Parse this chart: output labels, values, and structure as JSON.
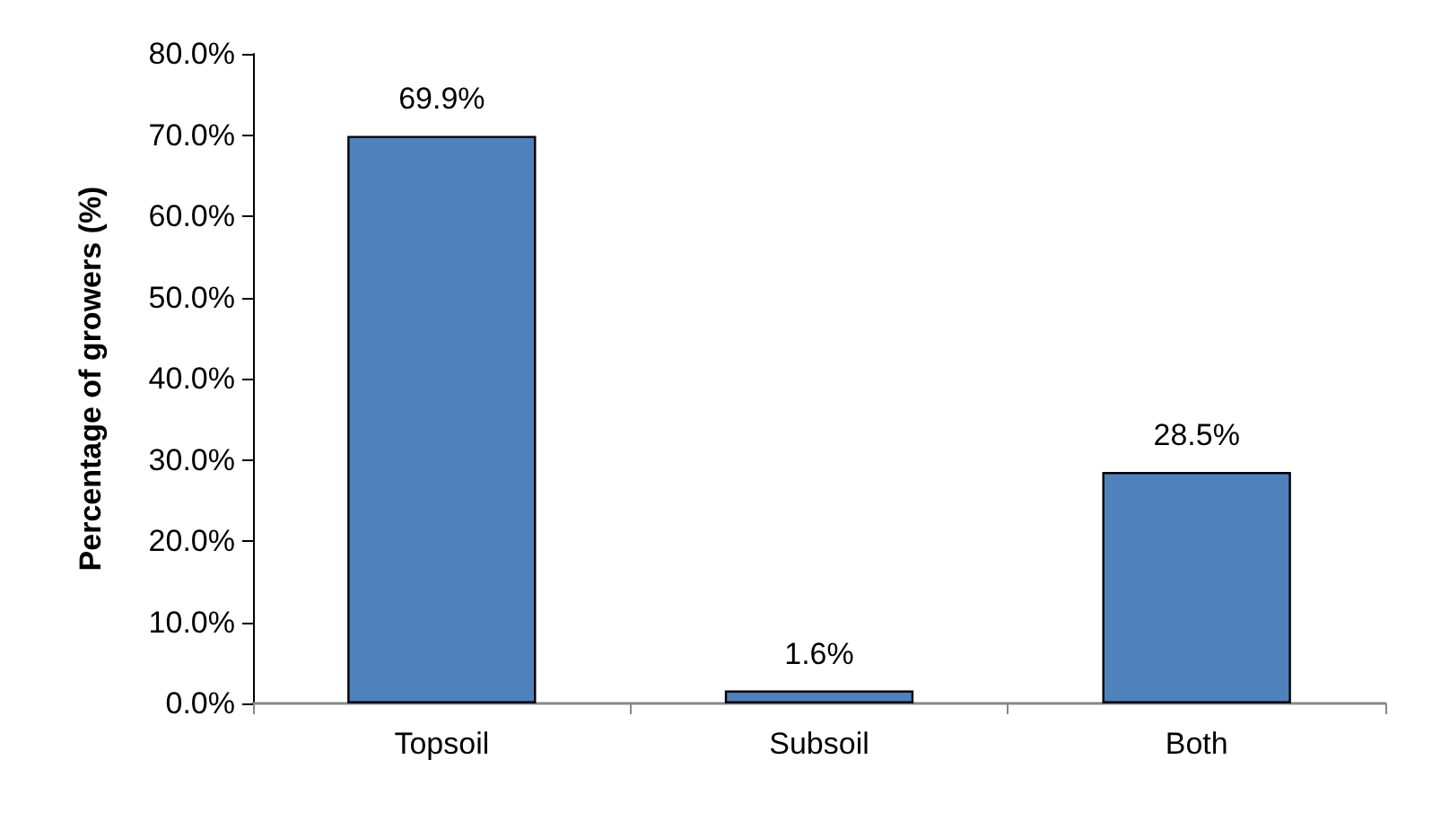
{
  "chart_data": {
    "type": "bar",
    "ylabel": "Percentage of growers (%)",
    "categories": [
      "Topsoil",
      "Subsoil",
      "Both"
    ],
    "values": [
      69.9,
      1.6,
      28.5
    ],
    "color": "#4f81bd",
    "value_labels": [
      "69.9%",
      "1.6%",
      "28.5%"
    ],
    "ylim": [
      0,
      80
    ],
    "yticks": [
      {
        "value": 0,
        "label": "0.0%"
      },
      {
        "value": 10,
        "label": "10.0%"
      },
      {
        "value": 20,
        "label": "20.0%"
      },
      {
        "value": 30,
        "label": "30.0%"
      },
      {
        "value": 40,
        "label": "40.0%"
      },
      {
        "value": 50,
        "label": "50.0%"
      },
      {
        "value": 60,
        "label": "60.0%"
      },
      {
        "value": 70,
        "label": "70.0%"
      },
      {
        "value": 80,
        "label": "80.0%"
      }
    ],
    "grid": false
  }
}
